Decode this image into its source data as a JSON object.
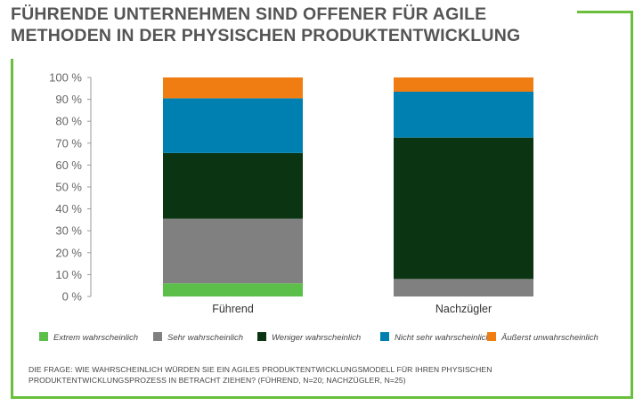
{
  "title": {
    "line1": "FÜHRENDE UNTERNEHMEN SIND OFFENER FÜR AGILE",
    "line2": "METHODEN IN DER PHYSISCHEN PRODUKTENTWICKLUNG"
  },
  "note": {
    "line1": "DIE FRAGE: WIE WAHRSCHEINLICH WÜRDEN SIE EIN AGILES PRODUKTENTWICKLUNGSMODELL FÜR IHREN PHYSISCHEN",
    "line2": "PRODUKTENTWICKLUNGSPROZESS IN BETRACHT ZIEHEN? (FÜHREND, N=20; NACHZÜGLER, N=25)"
  },
  "colors": {
    "frame": "#6abf3c",
    "title": "#555555"
  },
  "chart_data": {
    "type": "bar",
    "stacked": true,
    "categories": [
      "Führend",
      "Nachzügler"
    ],
    "ylim": [
      0,
      100
    ],
    "yticks": [
      "0 %",
      "10 %",
      "20 %",
      "30 %",
      "40 %",
      "50 %",
      "60 %",
      "70 %",
      "80 %",
      "90 %",
      "100 %"
    ],
    "grid": false,
    "legend_position": "bottom",
    "series": [
      {
        "name": "Extrem wahrscheinlich",
        "color": "#5cbf4a",
        "values": [
          6,
          0
        ]
      },
      {
        "name": "Sehr wahrscheinlich",
        "color": "#808080",
        "values": [
          29.5,
          8
        ]
      },
      {
        "name": "Weniger wahrscheinlich",
        "color": "#0b3512",
        "values": [
          30,
          64.5
        ]
      },
      {
        "name": "Nicht sehr wahrscheinlich",
        "color": "#0080b0",
        "values": [
          25,
          21
        ]
      },
      {
        "name": "Äußerst unwahrscheinlich",
        "color": "#f07d12",
        "values": [
          9.5,
          6.5
        ]
      }
    ]
  }
}
